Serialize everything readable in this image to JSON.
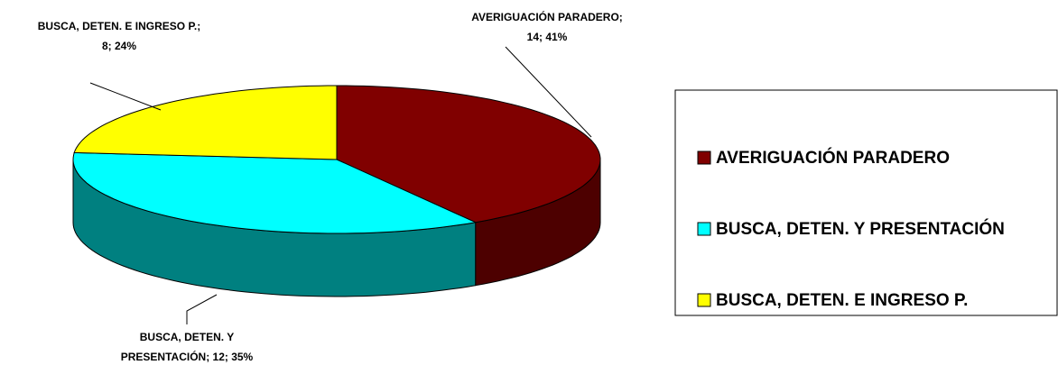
{
  "chart_data": {
    "type": "pie3d",
    "categories": [
      "AVERIGUACIÓN PARADERO",
      "BUSCA, DETEN. Y PRESENTACIÓN",
      "BUSCA, DETEN. E INGRESO P."
    ],
    "values": [
      14,
      12,
      8
    ],
    "value_labels": [
      [
        "AVERIGUACIÓN PARADERO;",
        "14; 41%"
      ],
      [
        "BUSCA, DETEN. Y",
        "PRESENTACIÓN; 12; 35%"
      ],
      [
        "BUSCA, DETEN. E INGRESO P.;",
        "8; 24%"
      ]
    ],
    "colors": [
      "#800000",
      "#00ffff",
      "#ffff00"
    ],
    "side_colors": [
      "#4d0000",
      "#008080",
      "#9a9a00"
    ],
    "legend": "right"
  }
}
